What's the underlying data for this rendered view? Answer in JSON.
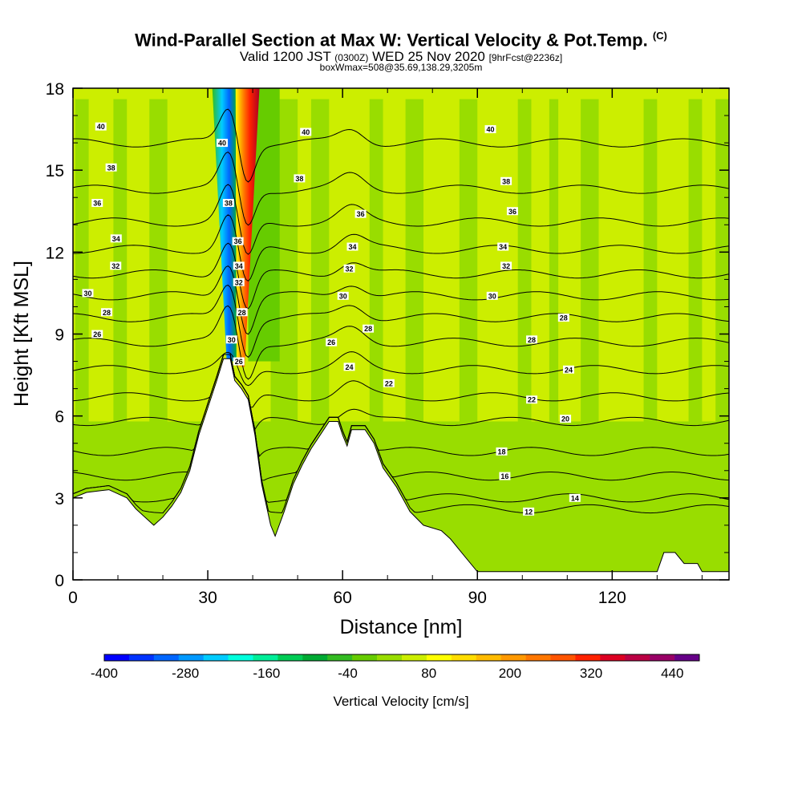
{
  "header": {
    "title": "Wind-Parallel Section at Max W: Vertical Velocity & Pot.Temp.",
    "copyright": "(C)",
    "subtitle_valid": "Valid 1200 JST",
    "subtitle_utc": "(0300Z)",
    "subtitle_date": "WED 25 Nov 2020",
    "subtitle_fcst": "[9hrFcst@2236z]",
    "subtitle_box": "boxWmax=508@35.69,138.29,3205m"
  },
  "chart_data": {
    "type": "heatmap",
    "xlabel": "Distance [nm]",
    "ylabel": "Height [Kft MSL]",
    "xlim": [
      0,
      146
    ],
    "ylim": [
      0,
      18
    ],
    "x_ticks": [
      0,
      30,
      60,
      90,
      120
    ],
    "y_ticks": [
      0,
      3,
      6,
      9,
      12,
      15,
      18
    ],
    "grid": false,
    "terrain": [
      [
        0,
        3.0
      ],
      [
        3,
        3.2
      ],
      [
        8,
        3.3
      ],
      [
        12,
        3.0
      ],
      [
        14,
        2.6
      ],
      [
        16,
        2.3
      ],
      [
        18,
        2.0
      ],
      [
        20,
        2.3
      ],
      [
        22,
        2.7
      ],
      [
        24,
        3.2
      ],
      [
        26,
        4.0
      ],
      [
        28,
        5.3
      ],
      [
        30,
        6.3
      ],
      [
        32,
        7.3
      ],
      [
        33.5,
        8.1
      ],
      [
        35,
        8.1
      ],
      [
        36,
        7.3
      ],
      [
        37.5,
        7.0
      ],
      [
        39,
        6.6
      ],
      [
        40.5,
        5.3
      ],
      [
        42,
        3.5
      ],
      [
        44,
        2.0
      ],
      [
        45,
        1.6
      ],
      [
        47,
        2.5
      ],
      [
        49,
        3.5
      ],
      [
        51,
        4.2
      ],
      [
        53,
        4.8
      ],
      [
        55,
        5.3
      ],
      [
        57,
        5.8
      ],
      [
        59,
        5.8
      ],
      [
        60,
        5.3
      ],
      [
        61,
        4.9
      ],
      [
        62,
        5.5
      ],
      [
        65,
        5.5
      ],
      [
        67,
        5.0
      ],
      [
        69,
        4.1
      ],
      [
        72,
        3.4
      ],
      [
        75,
        2.5
      ],
      [
        78,
        2.0
      ],
      [
        82,
        1.8
      ],
      [
        84,
        1.5
      ],
      [
        87,
        0.9
      ],
      [
        90,
        0.3
      ],
      [
        100,
        0.3
      ],
      [
        110,
        0.3
      ],
      [
        130,
        0.3
      ],
      [
        131.5,
        1.0
      ],
      [
        134,
        1.0
      ],
      [
        136,
        0.6
      ],
      [
        139,
        0.6
      ],
      [
        140,
        0.3
      ],
      [
        146,
        0.3
      ]
    ],
    "theta_contour_levels": [
      12,
      14,
      16,
      18,
      20,
      22,
      24,
      26,
      28,
      30,
      32,
      34,
      36,
      38,
      40
    ],
    "theta_contour_heights_far": [
      2.6,
      3.0,
      3.8,
      4.7,
      5.8,
      6.7,
      7.7,
      8.7,
      9.6,
      10.4,
      11.2,
      12.1,
      13.1,
      14.3,
      16.0
    ],
    "contour_labels": [
      {
        "text": "40",
        "x": 6.2,
        "y": 16.6
      },
      {
        "text": "38",
        "x": 8.5,
        "y": 15.1
      },
      {
        "text": "36",
        "x": 5.4,
        "y": 13.8
      },
      {
        "text": "34",
        "x": 9.6,
        "y": 12.5
      },
      {
        "text": "32",
        "x": 9.5,
        "y": 11.5
      },
      {
        "text": "30",
        "x": 3.3,
        "y": 10.5
      },
      {
        "text": "28",
        "x": 7.5,
        "y": 9.8
      },
      {
        "text": "26",
        "x": 5.4,
        "y": 9.0
      },
      {
        "text": "40",
        "x": 33.2,
        "y": 16.0
      },
      {
        "text": "38",
        "x": 34.6,
        "y": 13.8
      },
      {
        "text": "36",
        "x": 36.7,
        "y": 12.4
      },
      {
        "text": "34",
        "x": 36.9,
        "y": 11.5
      },
      {
        "text": "32",
        "x": 36.9,
        "y": 10.9
      },
      {
        "text": "28",
        "x": 37.6,
        "y": 9.8
      },
      {
        "text": "30",
        "x": 35.3,
        "y": 8.8
      },
      {
        "text": "26",
        "x": 36.9,
        "y": 8.0
      },
      {
        "text": "40",
        "x": 51.8,
        "y": 16.4
      },
      {
        "text": "38",
        "x": 50.4,
        "y": 14.7
      },
      {
        "text": "36",
        "x": 64.0,
        "y": 13.4
      },
      {
        "text": "34",
        "x": 62.2,
        "y": 12.2
      },
      {
        "text": "32",
        "x": 61.5,
        "y": 11.4
      },
      {
        "text": "30",
        "x": 60.1,
        "y": 10.4
      },
      {
        "text": "28",
        "x": 65.7,
        "y": 9.2
      },
      {
        "text": "26",
        "x": 57.5,
        "y": 8.7
      },
      {
        "text": "24",
        "x": 61.5,
        "y": 7.8
      },
      {
        "text": "22",
        "x": 70.3,
        "y": 7.2
      },
      {
        "text": "40",
        "x": 92.9,
        "y": 16.5
      },
      {
        "text": "38",
        "x": 96.4,
        "y": 14.6
      },
      {
        "text": "36",
        "x": 97.8,
        "y": 13.5
      },
      {
        "text": "34",
        "x": 95.7,
        "y": 12.2
      },
      {
        "text": "32",
        "x": 96.4,
        "y": 11.5
      },
      {
        "text": "30",
        "x": 93.3,
        "y": 10.4
      },
      {
        "text": "28",
        "x": 109.2,
        "y": 9.6
      },
      {
        "text": "28",
        "x": 102.1,
        "y": 8.8
      },
      {
        "text": "24",
        "x": 110.3,
        "y": 7.7
      },
      {
        "text": "22",
        "x": 102.1,
        "y": 6.6
      },
      {
        "text": "20",
        "x": 109.6,
        "y": 5.9
      },
      {
        "text": "18",
        "x": 95.4,
        "y": 4.7
      },
      {
        "text": "16",
        "x": 96.1,
        "y": 3.8
      },
      {
        "text": "14",
        "x": 111.7,
        "y": 3.0
      },
      {
        "text": "12",
        "x": 101.4,
        "y": 2.5
      }
    ],
    "colorbar": {
      "title": "Vertical Velocity [cm/s]",
      "min": -400,
      "max": 480,
      "step": 40,
      "tick_labels": [
        "-400",
        "-280",
        "-160",
        "-40",
        "80",
        "200",
        "320",
        "440"
      ],
      "colors": [
        "#0000ff",
        "#0033ff",
        "#0066ff",
        "#0099ff",
        "#00ccff",
        "#00ffdd",
        "#00ee99",
        "#00cc55",
        "#00aa33",
        "#33bb22",
        "#66cc00",
        "#99dd00",
        "#ccee00",
        "#ffff00",
        "#ffdd00",
        "#ffbb00",
        "#ff9900",
        "#ff7700",
        "#ff5500",
        "#ff2200",
        "#dd0022",
        "#bb0044",
        "#990066",
        "#660088"
      ]
    },
    "background_color": "#ccee00",
    "updraft_color": "#ff2200",
    "downdraft_color": "#0099ff"
  }
}
